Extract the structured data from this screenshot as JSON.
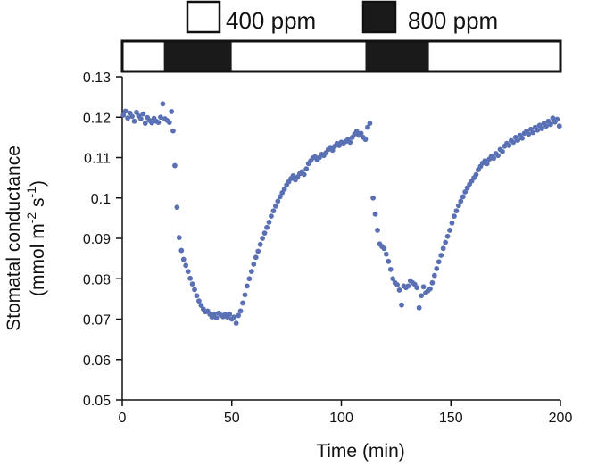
{
  "chart_data": {
    "type": "scatter",
    "title": "",
    "xlabel": "Time (min)",
    "ylabel_line1": "Stomatal conductance",
    "ylabel_line2_main": "(mmol m",
    "ylabel_line2_exp1": "-2",
    "ylabel_line2_mid": " s",
    "ylabel_line2_exp2": "-1",
    "ylabel_line2_end": ")",
    "xlim": [
      0,
      200
    ],
    "ylim": [
      0.05,
      0.13
    ],
    "xticks": [
      0,
      50,
      100,
      150,
      200
    ],
    "xtick_labels": [
      "0",
      "50",
      "100",
      "150",
      "200"
    ],
    "yticks": [
      0.05,
      0.06,
      0.07,
      0.08,
      0.09,
      0.1,
      0.11,
      0.12,
      0.13
    ],
    "ytick_labels": [
      "0.05",
      "0.06",
      "0.07",
      "0.08",
      "0.09",
      "0.1",
      "0.11",
      "0.12",
      "0.13"
    ],
    "marker_color": "#5a70b4",
    "legend": [
      {
        "label": "400 ppm",
        "fill": "#ffffff"
      },
      {
        "label": "800 ppm",
        "fill": "#1a1a1a"
      }
    ],
    "treatment_bar": [
      {
        "start": 0,
        "end": 19,
        "treatment": "400 ppm"
      },
      {
        "start": 19,
        "end": 50,
        "treatment": "800 ppm"
      },
      {
        "start": 50,
        "end": 111,
        "treatment": "400 ppm"
      },
      {
        "start": 111,
        "end": 140,
        "treatment": "800 ppm"
      },
      {
        "start": 140,
        "end": 200,
        "treatment": "400 ppm"
      }
    ],
    "series": [
      {
        "name": "Stomatal conductance",
        "points": [
          [
            0.5,
            0.1205
          ],
          [
            1.5,
            0.1215
          ],
          [
            2.5,
            0.1198
          ],
          [
            3.5,
            0.121
          ],
          [
            4.5,
            0.1202
          ],
          [
            5.5,
            0.119
          ],
          [
            6.5,
            0.1212
          ],
          [
            7.5,
            0.1203
          ],
          [
            8.5,
            0.1196
          ],
          [
            9.5,
            0.1208
          ],
          [
            10.5,
            0.1185
          ],
          [
            11.5,
            0.1199
          ],
          [
            12.5,
            0.1192
          ],
          [
            13.5,
            0.1186
          ],
          [
            14.5,
            0.1197
          ],
          [
            15.5,
            0.119
          ],
          [
            16.5,
            0.1187
          ],
          [
            17.5,
            0.12
          ],
          [
            18.5,
            0.1233
          ],
          [
            19.5,
            0.1196
          ],
          [
            20.5,
            0.1192
          ],
          [
            21.5,
            0.1187
          ],
          [
            22.5,
            0.1214
          ],
          [
            23.2,
            0.1166
          ],
          [
            24.0,
            0.108
          ],
          [
            25.0,
            0.0977
          ],
          [
            26.0,
            0.0902
          ],
          [
            27.0,
            0.087
          ],
          [
            28.0,
            0.0848
          ],
          [
            29.0,
            0.0833
          ],
          [
            30.0,
            0.0818
          ],
          [
            31.0,
            0.0801
          ],
          [
            32.0,
            0.0787
          ],
          [
            33.0,
            0.0773
          ],
          [
            34.0,
            0.0758
          ],
          [
            35.0,
            0.0745
          ],
          [
            36.0,
            0.0734
          ],
          [
            37.0,
            0.0725
          ],
          [
            38.0,
            0.0718
          ],
          [
            39.0,
            0.072
          ],
          [
            40.0,
            0.0712
          ],
          [
            41.0,
            0.0705
          ],
          [
            42.0,
            0.0713
          ],
          [
            43.0,
            0.0703
          ],
          [
            44.0,
            0.0715
          ],
          [
            45.0,
            0.071
          ],
          [
            46.0,
            0.0706
          ],
          [
            47.0,
            0.0712
          ],
          [
            48.0,
            0.0705
          ],
          [
            49.0,
            0.0712
          ],
          [
            50.0,
            0.07
          ],
          [
            51.0,
            0.0705
          ],
          [
            52.0,
            0.069
          ],
          [
            53.0,
            0.0709
          ],
          [
            54.0,
            0.072
          ],
          [
            55.0,
            0.074
          ],
          [
            56.0,
            0.076
          ],
          [
            57.0,
            0.0782
          ],
          [
            58.0,
            0.08
          ],
          [
            59.0,
            0.0818
          ],
          [
            60.0,
            0.0836
          ],
          [
            61.0,
            0.0853
          ],
          [
            62.0,
            0.0868
          ],
          [
            63.0,
            0.0885
          ],
          [
            64.0,
            0.09
          ],
          [
            65.0,
            0.0913
          ],
          [
            66.0,
            0.0927
          ],
          [
            67.0,
            0.094
          ],
          [
            68.0,
            0.0955
          ],
          [
            69.0,
            0.0968
          ],
          [
            70.0,
            0.098
          ],
          [
            71.0,
            0.0992
          ],
          [
            72.0,
            0.1003
          ],
          [
            73.0,
            0.1013
          ],
          [
            74.0,
            0.1022
          ],
          [
            75.0,
            0.1032
          ],
          [
            76.0,
            0.104
          ],
          [
            77.0,
            0.1048
          ],
          [
            78.0,
            0.1055
          ],
          [
            79.0,
            0.1045
          ],
          [
            80.0,
            0.1052
          ],
          [
            81.0,
            0.106
          ],
          [
            82.0,
            0.1065
          ],
          [
            83.0,
            0.1058
          ],
          [
            84.0,
            0.1072
          ],
          [
            85.0,
            0.1085
          ],
          [
            86.0,
            0.1092
          ],
          [
            87.0,
            0.1099
          ],
          [
            88.0,
            0.1102
          ],
          [
            89.0,
            0.1094
          ],
          [
            90.0,
            0.11
          ],
          [
            91.0,
            0.1108
          ],
          [
            92.0,
            0.1105
          ],
          [
            93.0,
            0.1112
          ],
          [
            94.0,
            0.112
          ],
          [
            95.0,
            0.1125
          ],
          [
            96.0,
            0.1118
          ],
          [
            97.0,
            0.1128
          ],
          [
            98.0,
            0.1135
          ],
          [
            99.0,
            0.113
          ],
          [
            100.0,
            0.1138
          ],
          [
            101.0,
            0.1136
          ],
          [
            102.0,
            0.114
          ],
          [
            103.0,
            0.1145
          ],
          [
            104.0,
            0.1138
          ],
          [
            105.0,
            0.115
          ],
          [
            106.0,
            0.1158
          ],
          [
            107.0,
            0.1165
          ],
          [
            108.0,
            0.1155
          ],
          [
            109.0,
            0.116
          ],
          [
            110.0,
            0.115
          ],
          [
            111.0,
            0.1145
          ],
          [
            112.0,
            0.1175
          ],
          [
            113.0,
            0.1185
          ],
          [
            114.5,
            0.1
          ],
          [
            115.5,
            0.096
          ],
          [
            116.5,
            0.092
          ],
          [
            117.5,
            0.0886
          ],
          [
            118.5,
            0.088
          ],
          [
            119.5,
            0.0875
          ],
          [
            120.5,
            0.0861
          ],
          [
            121.5,
            0.0843
          ],
          [
            122.5,
            0.0823
          ],
          [
            123.5,
            0.08
          ],
          [
            124.5,
            0.079
          ],
          [
            125.5,
            0.0785
          ],
          [
            126.5,
            0.0772
          ],
          [
            127.5,
            0.0735
          ],
          [
            128.5,
            0.0782
          ],
          [
            129.5,
            0.0778
          ],
          [
            130.5,
            0.0782
          ],
          [
            131.5,
            0.0795
          ],
          [
            132.5,
            0.079
          ],
          [
            133.5,
            0.0786
          ],
          [
            134.5,
            0.0778
          ],
          [
            135.5,
            0.0728
          ],
          [
            136.5,
            0.0758
          ],
          [
            137.5,
            0.078
          ],
          [
            138.5,
            0.0765
          ],
          [
            139.5,
            0.077
          ],
          [
            140.5,
            0.0775
          ],
          [
            141.5,
            0.079
          ],
          [
            142.5,
            0.0808
          ],
          [
            143.5,
            0.0825
          ],
          [
            144.5,
            0.0842
          ],
          [
            145.5,
            0.0858
          ],
          [
            146.5,
            0.0875
          ],
          [
            147.5,
            0.089
          ],
          [
            148.5,
            0.0905
          ],
          [
            149.5,
            0.092
          ],
          [
            150.5,
            0.0938
          ],
          [
            151.5,
            0.0955
          ],
          [
            152.5,
            0.0968
          ],
          [
            153.5,
            0.0981
          ],
          [
            154.5,
            0.0992
          ],
          [
            155.5,
            0.1003
          ],
          [
            156.5,
            0.1015
          ],
          [
            157.5,
            0.1025
          ],
          [
            158.5,
            0.1034
          ],
          [
            159.5,
            0.1042
          ],
          [
            160.5,
            0.105
          ],
          [
            161.5,
            0.1058
          ],
          [
            162.5,
            0.107
          ],
          [
            163.5,
            0.1078
          ],
          [
            164.5,
            0.1086
          ],
          [
            165.5,
            0.1092
          ],
          [
            166.5,
            0.1085
          ],
          [
            167.5,
            0.1096
          ],
          [
            168.5,
            0.1103
          ],
          [
            169.5,
            0.1098
          ],
          [
            170.5,
            0.111
          ],
          [
            171.5,
            0.1105
          ],
          [
            172.5,
            0.112
          ],
          [
            173.5,
            0.1115
          ],
          [
            174.5,
            0.1128
          ],
          [
            175.5,
            0.1135
          ],
          [
            176.5,
            0.113
          ],
          [
            177.5,
            0.1142
          ],
          [
            178.5,
            0.1138
          ],
          [
            179.5,
            0.115
          ],
          [
            180.5,
            0.1143
          ],
          [
            181.5,
            0.1155
          ],
          [
            182.5,
            0.1148
          ],
          [
            183.5,
            0.116
          ],
          [
            184.5,
            0.1165
          ],
          [
            185.5,
            0.1158
          ],
          [
            186.5,
            0.117
          ],
          [
            187.5,
            0.1162
          ],
          [
            188.5,
            0.1175
          ],
          [
            189.5,
            0.1168
          ],
          [
            190.5,
            0.118
          ],
          [
            191.5,
            0.1172
          ],
          [
            192.5,
            0.1185
          ],
          [
            193.5,
            0.1178
          ],
          [
            194.5,
            0.119
          ],
          [
            195.5,
            0.1182
          ],
          [
            196.5,
            0.1198
          ],
          [
            197.5,
            0.1188
          ],
          [
            198.5,
            0.1195
          ],
          [
            199.5,
            0.1178
          ]
        ]
      }
    ]
  }
}
